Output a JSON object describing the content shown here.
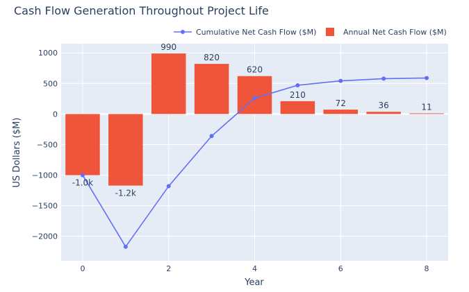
{
  "chart_data": {
    "type": "bar",
    "title": "Cash Flow Generation Throughout Project Life",
    "xlabel": "Year",
    "ylabel": "US Dollars ($M)",
    "x": [
      0,
      1,
      2,
      3,
      4,
      5,
      6,
      7,
      8
    ],
    "x_ticks": [
      "0",
      "2",
      "4",
      "6",
      "8"
    ],
    "y_ticks": [
      "1000",
      "500",
      "0",
      "−500",
      "−1000",
      "−1500",
      "−2000"
    ],
    "ylim": [
      -2400,
      1150
    ],
    "xlim": [
      -0.5,
      8.5
    ],
    "grid": true,
    "legend_position": "top-right",
    "series": [
      {
        "name": "Cumulative Net Cash Flow ($M)",
        "type": "line",
        "color": "#636efa",
        "values": [
          -1000,
          -2170,
          -1180,
          -360,
          260,
          470,
          542,
          578,
          589
        ]
      },
      {
        "name": "Annual Net Cash Flow ($M)",
        "type": "bar",
        "color": "#ef553b",
        "values": [
          -1000,
          -1170,
          990,
          820,
          620,
          210,
          72,
          36,
          11
        ],
        "labels": [
          "-1.0k",
          "-1.2k",
          "990",
          "820",
          "620",
          "210",
          "72",
          "36",
          "11"
        ]
      }
    ]
  }
}
